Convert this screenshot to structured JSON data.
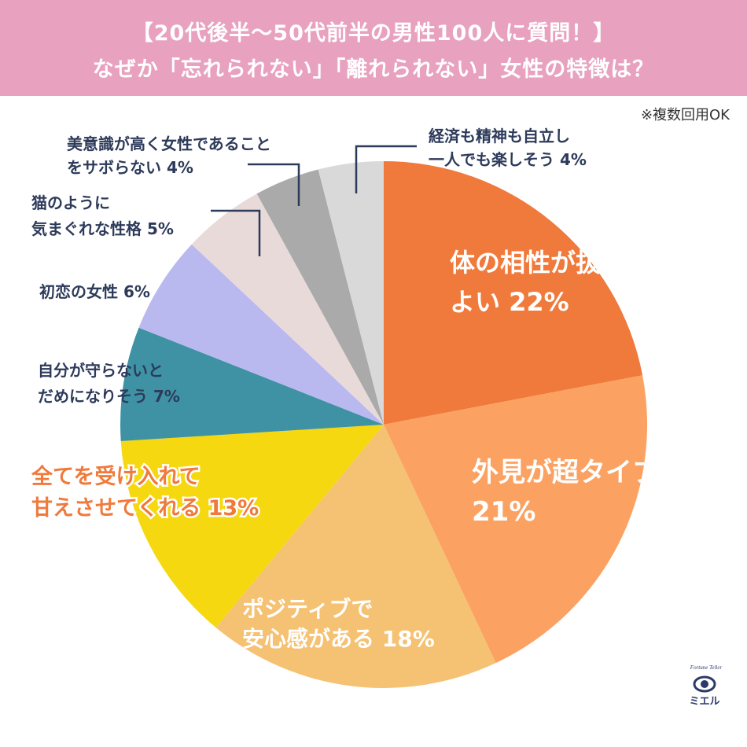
{
  "header": {
    "line1": "【20代後半〜50代前半の男性100人に質問！】",
    "line2": "なぜか「忘れられない」「離れられない」女性の特徴は？",
    "background": "#e8a1bf"
  },
  "note": "※複数回用OK",
  "chart_data": {
    "type": "pie",
    "title": "なぜか「忘れられない」「離れられない」女性の特徴は？",
    "unit": "%",
    "slices": [
      {
        "label": "体の相性が抜群によい",
        "value": 22,
        "color": "#f07a3c",
        "line1": "体の相性が抜群に",
        "line2": "よい 22%"
      },
      {
        "label": "外見が超タイプ",
        "value": 21,
        "color": "#fba263",
        "line1": "外見が超タイプ",
        "line2": "21%"
      },
      {
        "label": "ポジティブで安心感がある",
        "value": 18,
        "color": "#f5c173",
        "line1": "ポジティブで",
        "line2": "安心感がある 18%"
      },
      {
        "label": "全てを受け入れて甘えさせてくれる",
        "value": 13,
        "color": "#f5d80f",
        "line1": "全てを受け入れて",
        "line2": "甘えさせてくれる 13%"
      },
      {
        "label": "自分が守らないとだめになりそう",
        "value": 7,
        "color": "#3e92a4",
        "line1": "自分が守らないと",
        "line2": "だめになりそう 7%"
      },
      {
        "label": "初恋の女性",
        "value": 6,
        "color": "#b9b9f0",
        "line1": "初恋の女性 6%",
        "line2": ""
      },
      {
        "label": "猫のように気まぐれな性格",
        "value": 5,
        "color": "#e9dada",
        "line1": "猫のように",
        "line2": "気まぐれな性格 5%"
      },
      {
        "label": "美意識が高く女性であることをサボらない",
        "value": 4,
        "color": "#aaaaaa",
        "line1": "美意識が高く女性であること",
        "line2": "をサボらない 4%"
      },
      {
        "label": "経済も精神も自立し一人でも楽しそう",
        "value": 4,
        "color": "#d9d9d9",
        "line1": "経済も精神も自立し",
        "line2": "一人でも楽しそう 4%"
      }
    ],
    "legend": "none"
  },
  "logo": {
    "arc_text": "Fortune Teller",
    "name": "ミエル",
    "gold": "#b8975a",
    "navy": "#2b3a6b"
  }
}
